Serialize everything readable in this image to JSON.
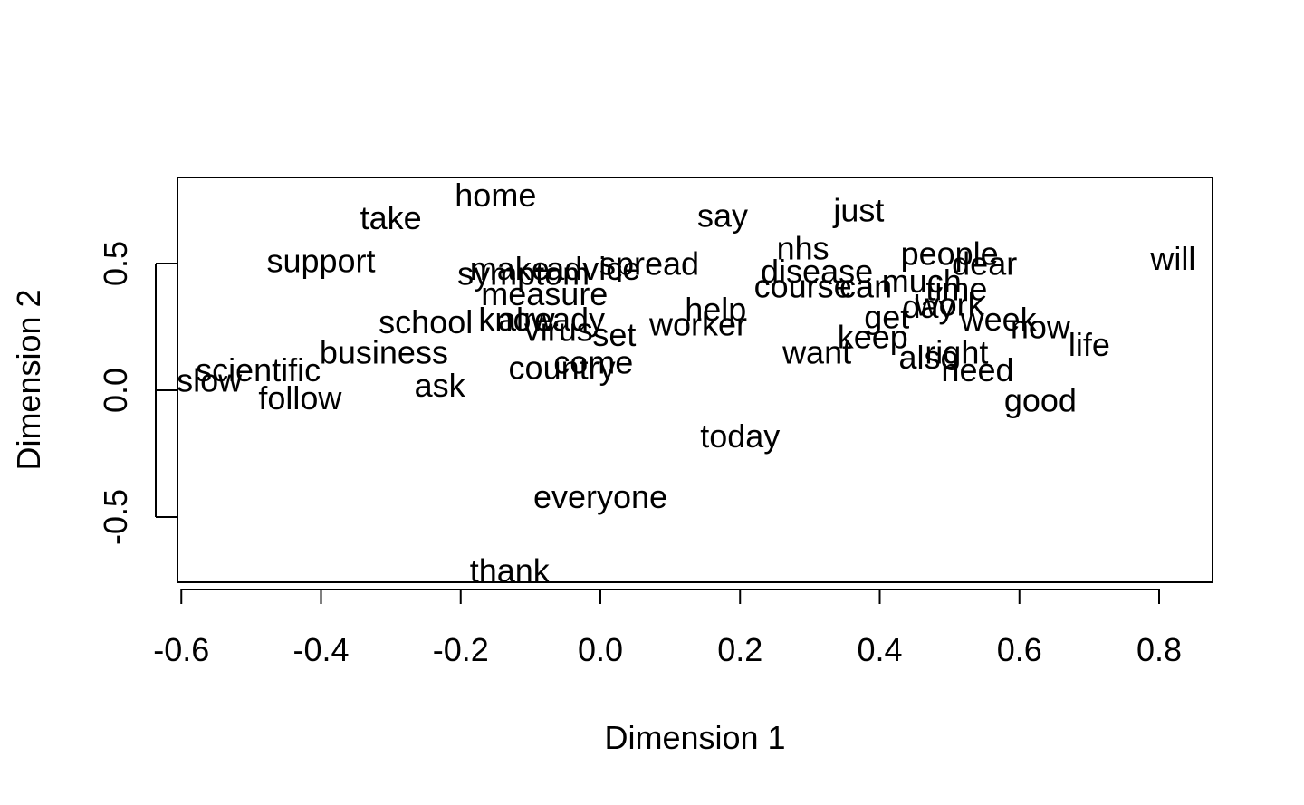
{
  "chart_data": {
    "type": "scatter",
    "title": "",
    "xlabel": "Dimension 1",
    "ylabel": "Dimension 2",
    "xlim": [
      -0.6,
      0.87
    ],
    "ylim": [
      -0.76,
      0.84
    ],
    "xticks": [
      "-0.6",
      "-0.4",
      "-0.2",
      "0.0",
      "0.2",
      "0.4",
      "0.6",
      "0.8"
    ],
    "xtick_values": [
      -0.6,
      -0.4,
      -0.2,
      0.0,
      0.2,
      0.4,
      0.6,
      0.8
    ],
    "yticks": [
      "-0.5",
      "0.0",
      "0.5"
    ],
    "ytick_values": [
      -0.5,
      0.0,
      0.5
    ],
    "grid": false,
    "legend": "none",
    "points": [
      {
        "label": "home",
        "x": -0.15,
        "y": 0.77
      },
      {
        "label": "take",
        "x": -0.3,
        "y": 0.68
      },
      {
        "label": "say",
        "x": 0.175,
        "y": 0.69
      },
      {
        "label": "just",
        "x": 0.37,
        "y": 0.71
      },
      {
        "label": "support",
        "x": -0.4,
        "y": 0.51
      },
      {
        "label": "nhs",
        "x": 0.29,
        "y": 0.56
      },
      {
        "label": "people",
        "x": 0.5,
        "y": 0.54
      },
      {
        "label": "will",
        "x": 0.82,
        "y": 0.52
      },
      {
        "label": "spread",
        "x": 0.07,
        "y": 0.5
      },
      {
        "label": "dear",
        "x": 0.55,
        "y": 0.5
      },
      {
        "label": "make",
        "x": -0.13,
        "y": 0.48
      },
      {
        "label": "advice",
        "x": -0.01,
        "y": 0.48
      },
      {
        "label": "disease",
        "x": 0.31,
        "y": 0.47
      },
      {
        "label": "symptom",
        "x": -0.11,
        "y": 0.46
      },
      {
        "label": "much",
        "x": 0.46,
        "y": 0.43
      },
      {
        "label": "course",
        "x": 0.29,
        "y": 0.41
      },
      {
        "label": "can",
        "x": 0.38,
        "y": 0.41
      },
      {
        "label": "time",
        "x": 0.51,
        "y": 0.4
      },
      {
        "label": "measure",
        "x": -0.08,
        "y": 0.38
      },
      {
        "label": "work",
        "x": 0.5,
        "y": 0.34
      },
      {
        "label": "help",
        "x": 0.165,
        "y": 0.32
      },
      {
        "label": "day",
        "x": 0.47,
        "y": 0.33
      },
      {
        "label": "get",
        "x": 0.41,
        "y": 0.29
      },
      {
        "label": "week",
        "x": 0.57,
        "y": 0.28
      },
      {
        "label": "school",
        "x": -0.25,
        "y": 0.27
      },
      {
        "label": "know",
        "x": -0.12,
        "y": 0.28
      },
      {
        "label": "already",
        "x": -0.07,
        "y": 0.28
      },
      {
        "label": "worker",
        "x": 0.14,
        "y": 0.26
      },
      {
        "label": "now",
        "x": 0.63,
        "y": 0.25
      },
      {
        "label": "virus",
        "x": -0.06,
        "y": 0.24
      },
      {
        "label": "set",
        "x": 0.02,
        "y": 0.22
      },
      {
        "label": "keep",
        "x": 0.39,
        "y": 0.21
      },
      {
        "label": "life",
        "x": 0.7,
        "y": 0.18
      },
      {
        "label": "business",
        "x": -0.31,
        "y": 0.15
      },
      {
        "label": "want",
        "x": 0.31,
        "y": 0.15
      },
      {
        "label": "right",
        "x": 0.51,
        "y": 0.15
      },
      {
        "label": "also",
        "x": 0.47,
        "y": 0.13
      },
      {
        "label": "come",
        "x": -0.01,
        "y": 0.11
      },
      {
        "label": "country",
        "x": -0.055,
        "y": 0.09
      },
      {
        "label": "need",
        "x": 0.54,
        "y": 0.08
      },
      {
        "label": "scientific",
        "x": -0.49,
        "y": 0.08
      },
      {
        "label": "slow",
        "x": -0.56,
        "y": 0.04
      },
      {
        "label": "ask",
        "x": -0.23,
        "y": 0.02
      },
      {
        "label": "follow",
        "x": -0.43,
        "y": -0.03
      },
      {
        "label": "good",
        "x": 0.63,
        "y": -0.04
      },
      {
        "label": "today",
        "x": 0.2,
        "y": -0.18
      },
      {
        "label": "everyone",
        "x": 0.0,
        "y": -0.42
      },
      {
        "label": "thank",
        "x": -0.13,
        "y": -0.71
      }
    ]
  }
}
